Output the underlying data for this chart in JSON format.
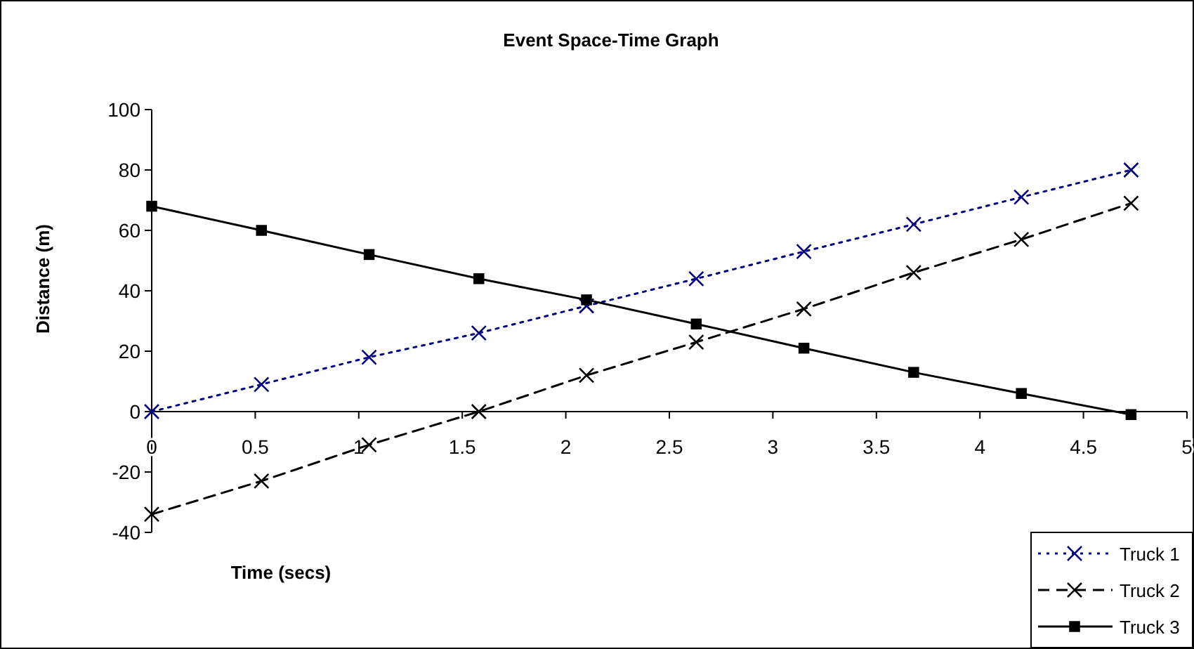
{
  "chart_data": {
    "type": "line",
    "title": "Event Space-Time Graph",
    "xlabel": "Time (secs)",
    "ylabel": "Distance (m)",
    "xlim": [
      0,
      5
    ],
    "xticks": [
      0,
      0.5,
      1,
      1.5,
      2,
      2.5,
      3,
      3.5,
      4,
      4.5,
      5
    ],
    "ylim": [
      -40,
      100
    ],
    "yticks": [
      -40,
      -20,
      0,
      20,
      40,
      60,
      80,
      100
    ],
    "x": [
      0,
      0.53,
      1.05,
      1.58,
      2.1,
      2.63,
      3.15,
      3.68,
      4.2,
      4.73
    ],
    "legend": "bottom right",
    "grid": false,
    "series": [
      {
        "name": "Truck 1",
        "color": "#000080",
        "marker": "cross",
        "line_style": "dotted",
        "values": [
          0,
          9,
          18,
          26,
          35,
          44,
          53,
          62,
          71,
          80
        ]
      },
      {
        "name": "Truck 2",
        "color": "#000000",
        "marker": "cross",
        "line_style": "dashed",
        "values": [
          -34,
          -23,
          -11,
          0,
          12,
          23,
          34,
          46,
          57,
          69
        ]
      },
      {
        "name": "Truck 3",
        "color": "#000000",
        "marker": "square",
        "line_style": "solid",
        "values": [
          68,
          60,
          52,
          44,
          37,
          29,
          21,
          13,
          6,
          -1
        ]
      }
    ]
  }
}
